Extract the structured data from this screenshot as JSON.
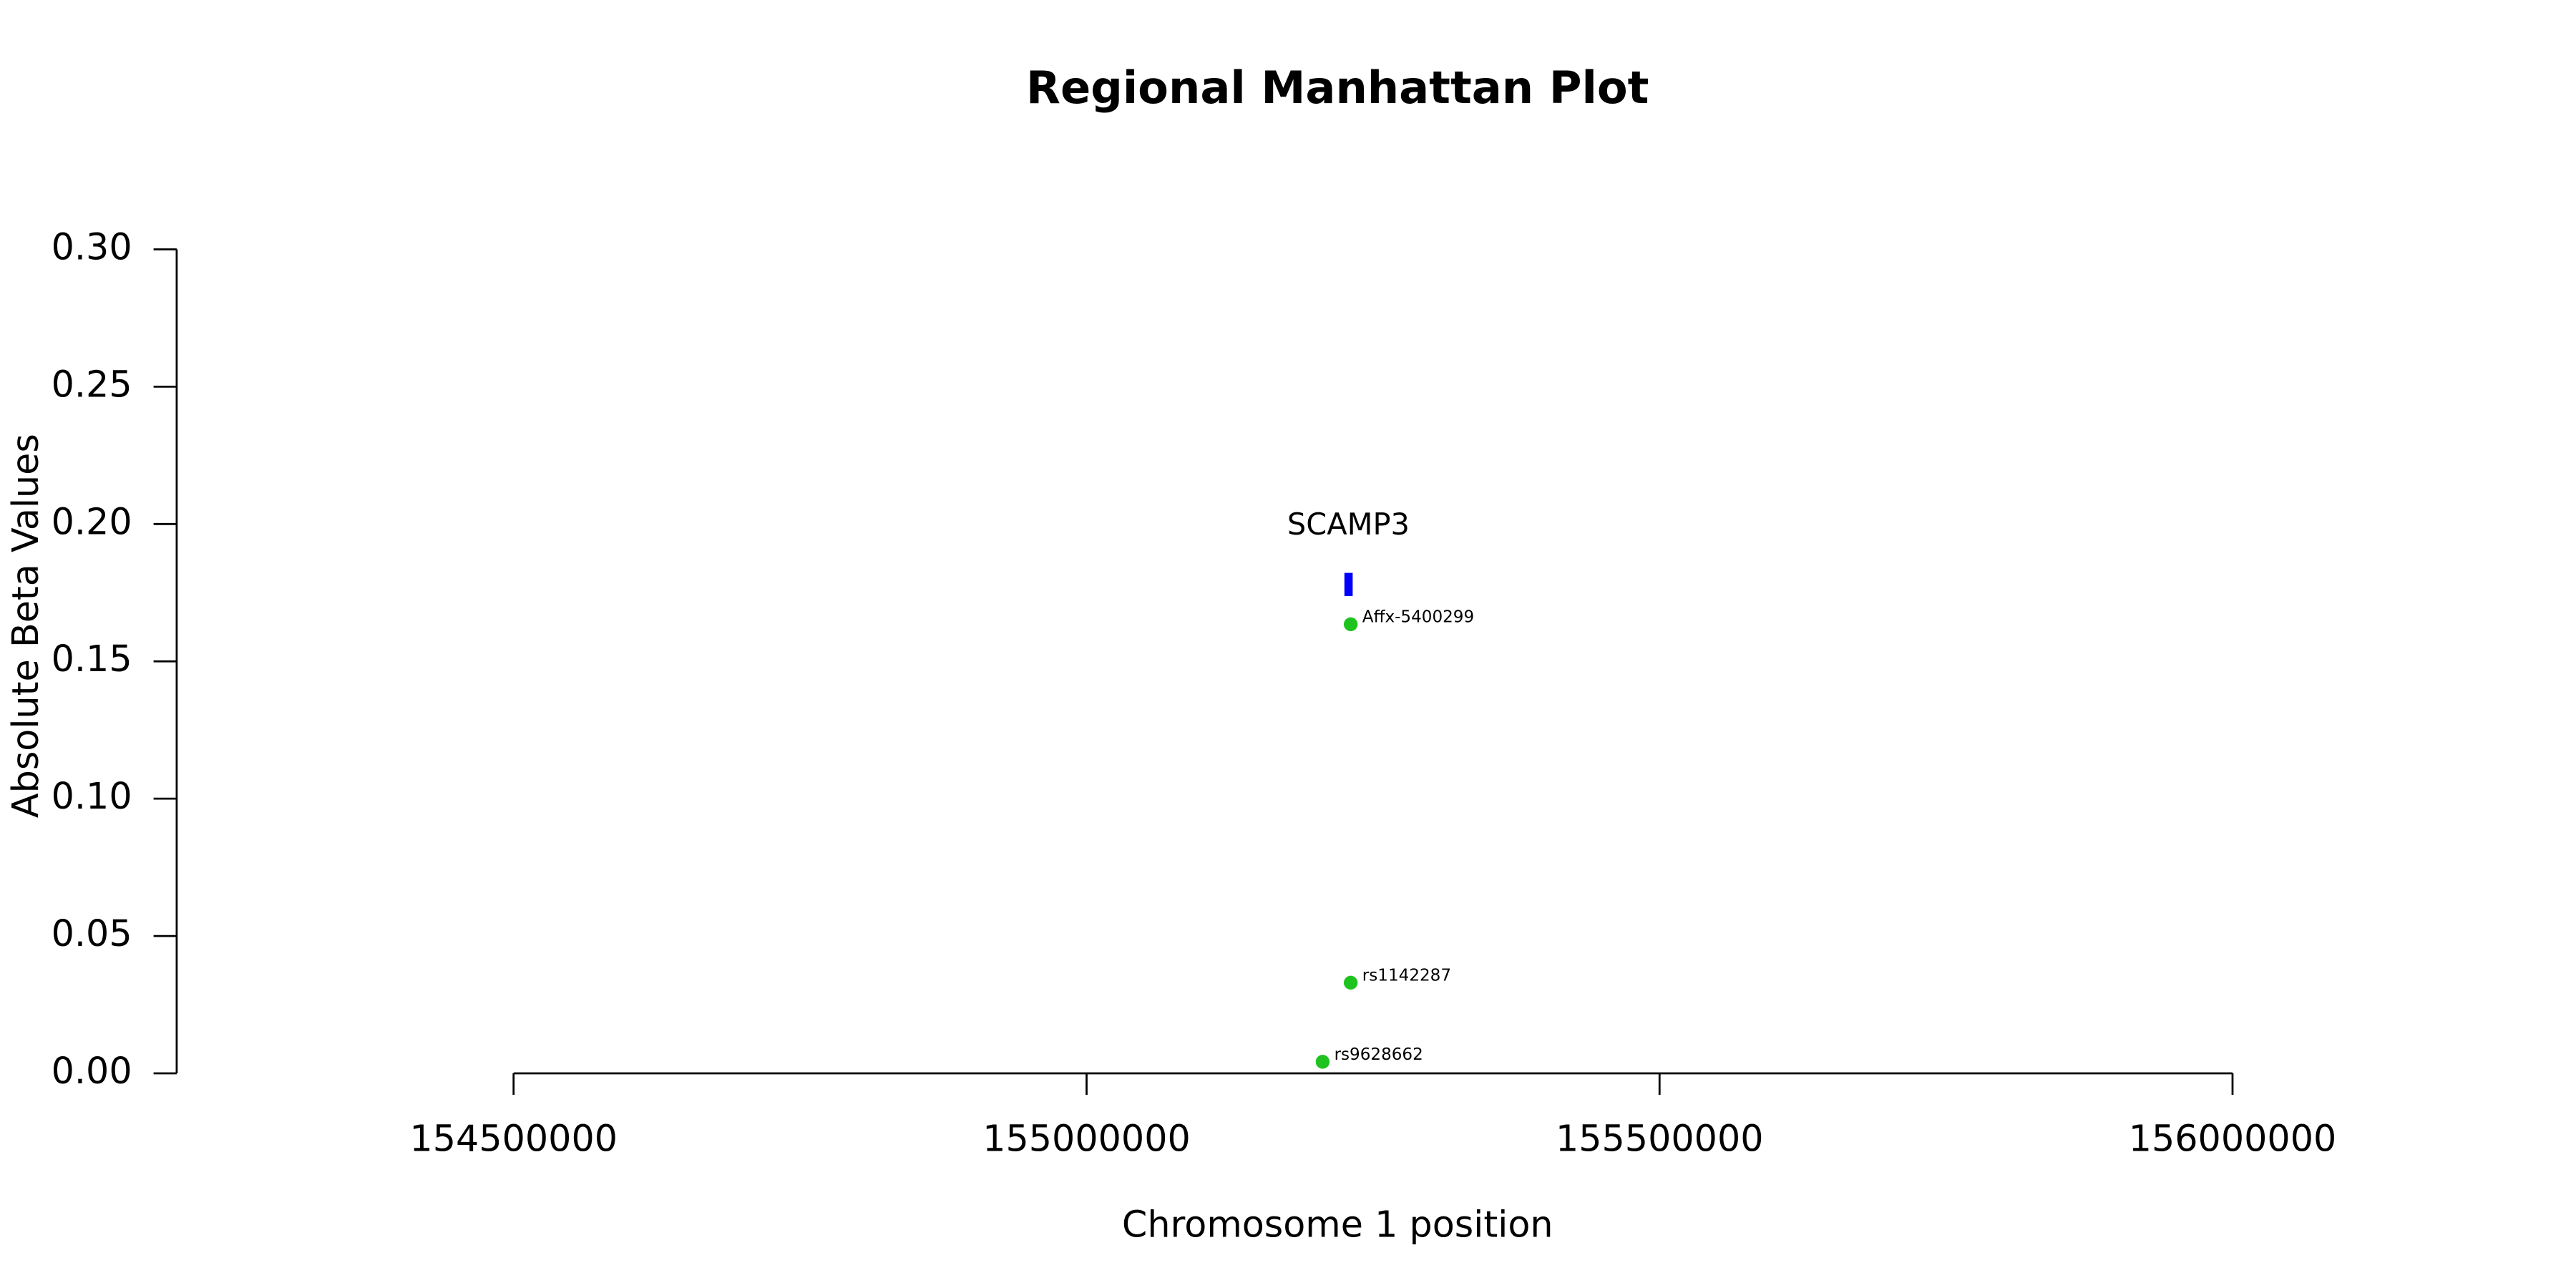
{
  "chart_data": {
    "type": "scatter",
    "title": "Regional Manhattan Plot",
    "x_label": "Chromosome 1 position",
    "y_label": "Absolute Beta Values",
    "x": [
      155230500,
      155230500,
      155206000
    ],
    "values": [
      0.1635,
      0.033,
      0.0042
    ],
    "point_labels": [
      "Affx-5400299",
      "rs1142287",
      "rs9628662"
    ],
    "color": "#1fc31f",
    "genes": [
      {
        "name": "SCAMP3",
        "start": 155225000,
        "end": 155232000,
        "y": 0.178,
        "color": "#0000ff"
      }
    ],
    "xlim": [
      154206000,
      156232000
    ],
    "xticks": [
      154500000,
      155000000,
      155500000,
      156000000
    ],
    "ylim": [
      0,
      0.3
    ],
    "yticks": [
      {
        "value": 0,
        "label": "0.00"
      },
      0.05,
      {
        "value": 0.1,
        "label": "0.10"
      },
      0.15,
      {
        "value": 0.2,
        "label": "0.20"
      },
      0.25,
      {
        "value": 0.3,
        "label": "0.30"
      }
    ],
    "grid": false
  }
}
